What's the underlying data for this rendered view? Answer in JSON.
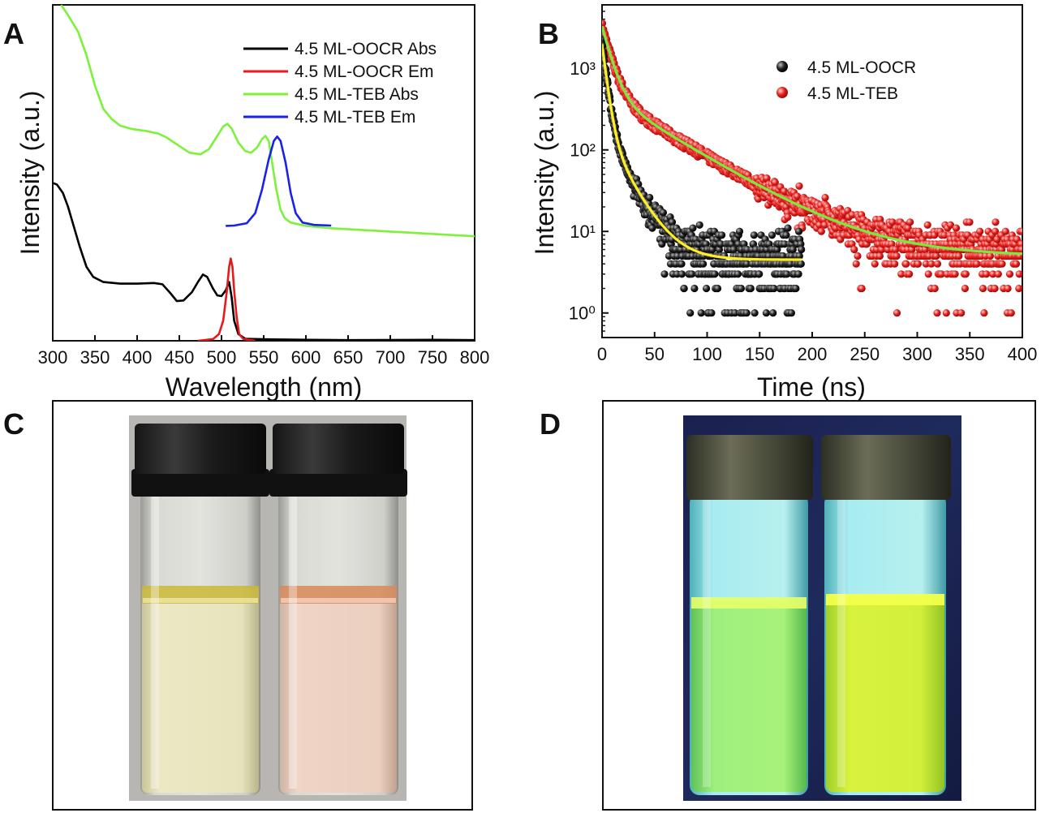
{
  "figure": {
    "panel_labels": [
      "A",
      "B",
      "C",
      "D"
    ]
  },
  "chart_data": [
    {
      "panel": "A",
      "type": "line",
      "xlabel": "Wavelength (nm)",
      "ylabel": "Intensity (a.u.)",
      "xlim": [
        300,
        800
      ],
      "x_ticks": [
        300,
        350,
        400,
        450,
        500,
        550,
        600,
        650,
        700,
        750,
        800
      ],
      "ylim": [
        0,
        1
      ],
      "legend_position": "top-right",
      "series": [
        {
          "name": "4.5 ML-OOCR Abs",
          "color": "#000000",
          "points": [
            [
              300,
              0.47
            ],
            [
              305,
              0.465
            ],
            [
              312,
              0.44
            ],
            [
              318,
              0.4
            ],
            [
              325,
              0.34
            ],
            [
              332,
              0.28
            ],
            [
              340,
              0.22
            ],
            [
              348,
              0.19
            ],
            [
              360,
              0.175
            ],
            [
              380,
              0.17
            ],
            [
              400,
              0.17
            ],
            [
              420,
              0.172
            ],
            [
              430,
              0.168
            ],
            [
              440,
              0.14
            ],
            [
              447,
              0.118
            ],
            [
              455,
              0.12
            ],
            [
              465,
              0.145
            ],
            [
              472,
              0.175
            ],
            [
              478,
              0.197
            ],
            [
              483,
              0.19
            ],
            [
              490,
              0.155
            ],
            [
              495,
              0.135
            ],
            [
              500,
              0.133
            ],
            [
              505,
              0.15
            ],
            [
              509,
              0.175
            ],
            [
              512,
              0.13
            ],
            [
              515,
              0.06
            ],
            [
              520,
              0.02
            ],
            [
              528,
              0.006
            ],
            [
              560,
              0.004
            ],
            [
              650,
              0.002
            ],
            [
              750,
              0.003
            ],
            [
              800,
              0.002
            ]
          ]
        },
        {
          "name": "4.5 ML-OOCR Em",
          "color": "#e41a1c",
          "points": [
            [
              472,
              0
            ],
            [
              490,
              0.005
            ],
            [
              497,
              0.02
            ],
            [
              502,
              0.06
            ],
            [
              506,
              0.14
            ],
            [
              509,
              0.22
            ],
            [
              511,
              0.245
            ],
            [
              513,
              0.22
            ],
            [
              515,
              0.15
            ],
            [
              518,
              0.07
            ],
            [
              521,
              0.02
            ],
            [
              526,
              0.005
            ],
            [
              540,
              0
            ]
          ]
        },
        {
          "name": "4.5 ML-TEB Abs",
          "color": "#7cf23a",
          "points": [
            [
              310,
              1.0
            ],
            [
              318,
              0.97
            ],
            [
              330,
              0.92
            ],
            [
              340,
              0.85
            ],
            [
              350,
              0.76
            ],
            [
              360,
              0.69
            ],
            [
              370,
              0.66
            ],
            [
              380,
              0.64
            ],
            [
              395,
              0.63
            ],
            [
              410,
              0.625
            ],
            [
              425,
              0.617
            ],
            [
              435,
              0.605
            ],
            [
              450,
              0.58
            ],
            [
              462,
              0.56
            ],
            [
              475,
              0.555
            ],
            [
              485,
              0.57
            ],
            [
              495,
              0.61
            ],
            [
              502,
              0.638
            ],
            [
              507,
              0.646
            ],
            [
              512,
              0.632
            ],
            [
              520,
              0.59
            ],
            [
              528,
              0.565
            ],
            [
              535,
              0.56
            ],
            [
              542,
              0.575
            ],
            [
              548,
              0.6
            ],
            [
              552,
              0.61
            ],
            [
              556,
              0.595
            ],
            [
              560,
              0.53
            ],
            [
              565,
              0.45
            ],
            [
              570,
              0.39
            ],
            [
              575,
              0.365
            ],
            [
              582,
              0.352
            ],
            [
              600,
              0.342
            ],
            [
              630,
              0.335
            ],
            [
              700,
              0.325
            ],
            [
              800,
              0.311
            ]
          ]
        },
        {
          "name": "4.5 ML-TEB Em",
          "color": "#1a22ea",
          "points": [
            [
              505,
              0.342
            ],
            [
              515,
              0.343
            ],
            [
              530,
              0.35
            ],
            [
              540,
              0.38
            ],
            [
              548,
              0.45
            ],
            [
              556,
              0.54
            ],
            [
              562,
              0.595
            ],
            [
              566,
              0.608
            ],
            [
              570,
              0.595
            ],
            [
              576,
              0.53
            ],
            [
              582,
              0.44
            ],
            [
              588,
              0.38
            ],
            [
              596,
              0.352
            ],
            [
              610,
              0.345
            ],
            [
              630,
              0.343
            ]
          ]
        }
      ]
    },
    {
      "panel": "B",
      "type": "scatter",
      "xlabel": "Time (ns)",
      "ylabel": "Intensity (a.u.)",
      "xlim": [
        0,
        400
      ],
      "x_ticks": [
        0,
        50,
        100,
        150,
        200,
        250,
        300,
        350,
        400
      ],
      "yscale": "log",
      "ylim": [
        0.5,
        6000
      ],
      "y_tick_labels": [
        "10⁰",
        "10¹",
        "10²",
        "10³"
      ],
      "legend_position": "top-right",
      "series": [
        {
          "name": "4.5 ML-OOCR",
          "marker_color": "#111111",
          "decay": {
            "offset": 4.5,
            "a1": 1800,
            "t1": 4,
            "a2": 180,
            "t2": 18
          },
          "x_range": [
            0,
            190
          ]
        },
        {
          "name": "4.5 ML-TEB",
          "marker_color": "#e8201c",
          "decay": {
            "offset": 5,
            "a1": 2800,
            "t1": 8,
            "a2": 480,
            "t2": 55
          },
          "x_range": [
            0,
            400
          ]
        }
      ],
      "fits": [
        {
          "name": "fit 4.5 ML-OOCR",
          "color": "#ffee22",
          "x_range": [
            0,
            190
          ]
        },
        {
          "name": "fit 4.5 ML-TEB",
          "color": "#7be83c",
          "x_range": [
            0,
            400
          ]
        }
      ]
    }
  ],
  "photos": [
    {
      "panel": "C",
      "description_color": "#b9b6b1",
      "vial_colors": [
        "#e6e3b8",
        "#ecd1c0"
      ]
    },
    {
      "panel": "D",
      "description_color": "#1c2454",
      "vial_colors": [
        "#9ef07c",
        "#d7f23f"
      ]
    }
  ]
}
